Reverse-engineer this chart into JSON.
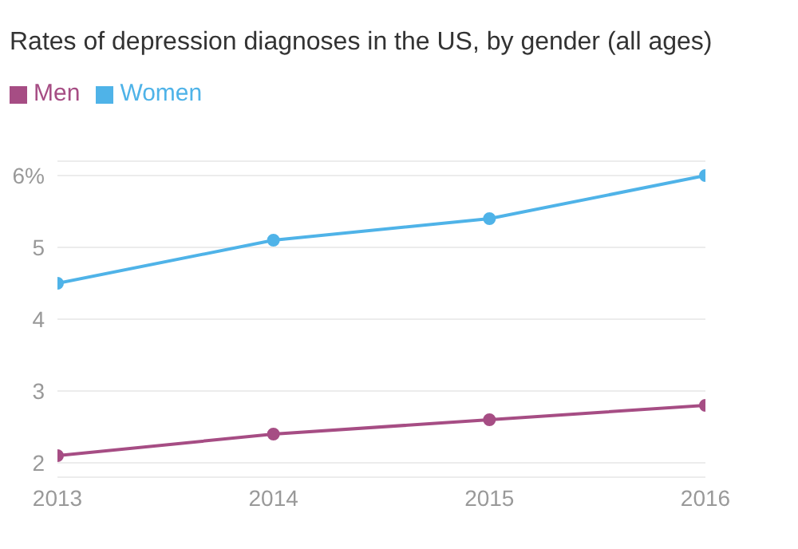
{
  "chart_data": {
    "type": "line",
    "title": "Rates of depression diagnoses in the US, by gender (all ages)",
    "x": [
      2013,
      2014,
      2015,
      2016
    ],
    "series": [
      {
        "name": "Men",
        "color": "#a64d84",
        "values": [
          2.1,
          2.4,
          2.6,
          2.8
        ]
      },
      {
        "name": "Women",
        "color": "#4fb3e8",
        "values": [
          4.5,
          5.1,
          5.4,
          6.0
        ]
      }
    ],
    "xlim": [
      2013,
      2016
    ],
    "xticks": [
      2013,
      2014,
      2015,
      2016
    ],
    "ylim": [
      1.8,
      6.2
    ],
    "yticks": [
      2,
      3,
      4,
      5,
      {
        "value": 6,
        "label": "6%"
      }
    ],
    "grid": "y",
    "legend": "top left",
    "marker": "circle",
    "line_style": "solid"
  }
}
